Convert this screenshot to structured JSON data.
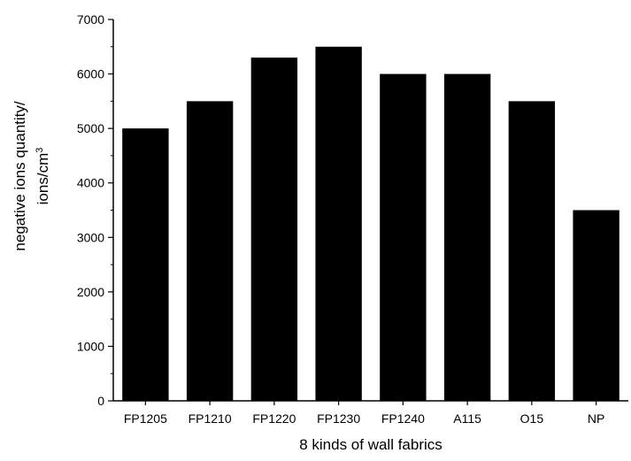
{
  "chart_data": {
    "type": "bar",
    "xlabel": "8 kinds of wall fabrics",
    "ylabel_line1": "negative ions quantity/",
    "ylabel_line2": "ions/cm",
    "ylabel_superscript": "3",
    "categories": [
      "FP1205",
      "FP1210",
      "FP1220",
      "FP1230",
      "FP1240",
      "A115",
      "O15",
      "NP"
    ],
    "values": [
      5000,
      5500,
      6300,
      6500,
      6000,
      6000,
      5500,
      3500
    ],
    "ylim": [
      0,
      7000
    ],
    "yticks": [
      0,
      1000,
      2000,
      3000,
      4000,
      5000,
      6000,
      7000
    ],
    "grid": false,
    "bar_color": "#000000"
  }
}
